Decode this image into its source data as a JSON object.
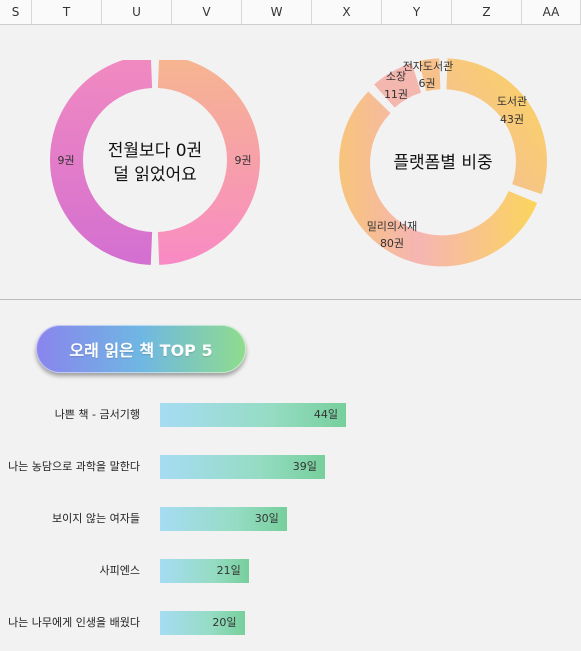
{
  "columns": [
    "S",
    "T",
    "U",
    "V",
    "W",
    "X",
    "Y",
    "Z",
    "AA"
  ],
  "left_donut": {
    "center_line1": "전월보다 0권",
    "center_line2": "덜 읽었어요",
    "slices": [
      {
        "label": "9권",
        "value": 9
      },
      {
        "label": "9권",
        "value": 9
      }
    ]
  },
  "right_donut": {
    "center": "플랫폼별 비중",
    "slices": [
      {
        "name": "도서관",
        "count": "43권",
        "value": 43
      },
      {
        "name": "밀리의서재",
        "count": "80권",
        "value": 80
      },
      {
        "name": "소장",
        "count": "11권",
        "value": 11
      },
      {
        "name": "전자도서관",
        "count": "6권",
        "value": 6
      }
    ]
  },
  "top5": {
    "title": "오래 읽은 책 TOP 5",
    "max_value": 44,
    "items": [
      {
        "label": "나쁜 책 - 금서기행",
        "value": 44,
        "value_label": "44일"
      },
      {
        "label": "나는 농담으로 과학을 말한다",
        "value": 39,
        "value_label": "39일"
      },
      {
        "label": "보이지 않는 여자들",
        "value": 30,
        "value_label": "30일"
      },
      {
        "label": "사피엔스",
        "value": 21,
        "value_label": "21일"
      },
      {
        "label": "나는 나무에게 인생을 배웠다",
        "value": 20,
        "value_label": "20일"
      }
    ]
  },
  "colors": {
    "left_donut_left": [
      "#f28ac0",
      "#d36fd1"
    ],
    "left_donut_right": [
      "#f6b68f",
      "#f88ac4"
    ],
    "right_donut_warm": [
      "#fbd55c",
      "#f3b9a3"
    ],
    "bar_gradient": [
      "#a6dcf3",
      "#77cf9c"
    ]
  }
}
